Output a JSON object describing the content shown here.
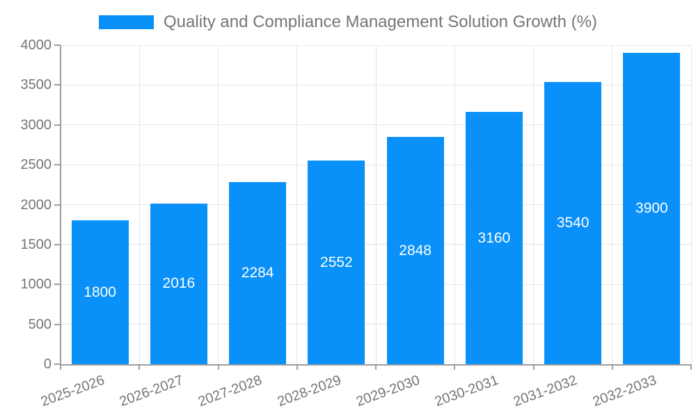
{
  "chart_data": {
    "type": "bar",
    "legend": "Quality and Compliance Management Solution Growth (%)",
    "legend_position": "top-center",
    "categories": [
      "2025-2026",
      "2026-2027",
      "2027-2028",
      "2028-2029",
      "2029-2030",
      "2030-2031",
      "2031-2032",
      "2032-2033"
    ],
    "values": [
      1800,
      2016,
      2284,
      2552,
      2848,
      3160,
      3540,
      3900
    ],
    "xlabel": "",
    "ylabel": "",
    "ylim": [
      0,
      4000
    ],
    "yticks": [
      0,
      500,
      1000,
      1500,
      2000,
      2500,
      3000,
      3500,
      4000
    ],
    "grid": "on",
    "value_labels": "inside-center",
    "xlabel_rotation_deg": -20
  },
  "colors": {
    "bar": "#0990f9",
    "value_label": "#ffffff",
    "axis": "#9e9e9e",
    "grid": "#e5e5e5",
    "tick_text": "#757575",
    "legend_text": "#757575",
    "background": "#ffffff"
  }
}
